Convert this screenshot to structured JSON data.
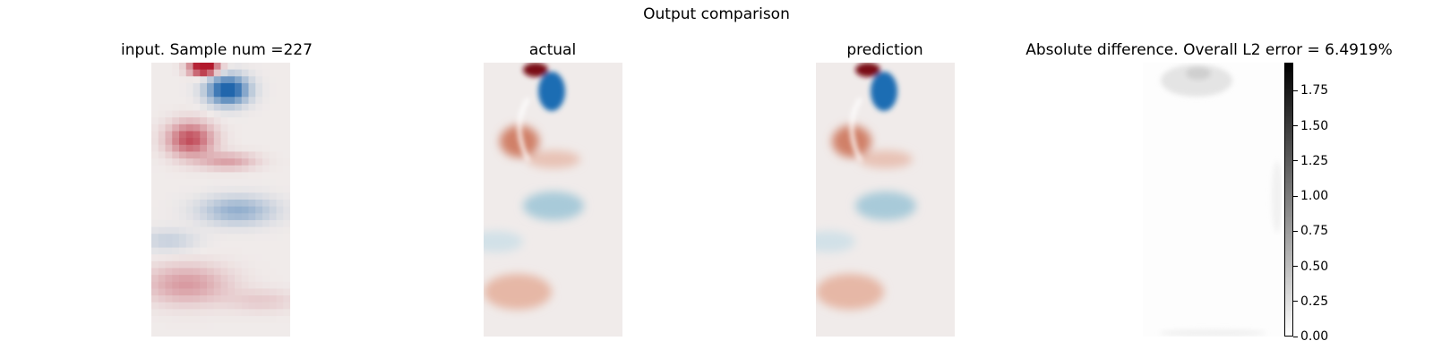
{
  "figure": {
    "suptitle": "Output comparison",
    "panels": [
      {
        "title": "input. Sample num =227"
      },
      {
        "title": "actual"
      },
      {
        "title": "prediction"
      },
      {
        "title": "Absolute difference. Overall L2 error = 6.4919%"
      }
    ]
  },
  "chart_data": {
    "type": "heatmap",
    "title": "Output comparison",
    "panels": [
      "input. Sample num =227",
      "actual",
      "prediction",
      "Absolute difference. Overall L2 error = 6.4919%"
    ],
    "colormap_fields": "diverging red-white-blue",
    "colormap_difference": "greys",
    "colors": {
      "red": "#b2182b",
      "blue": "#2166ac",
      "neutral": "#f0ebea"
    },
    "colorbar": {
      "ticks": [
        "0.00",
        "0.25",
        "0.50",
        "0.75",
        "1.00",
        "1.25",
        "1.50",
        "1.75"
      ],
      "range": [
        0.0,
        1.95
      ]
    }
  }
}
